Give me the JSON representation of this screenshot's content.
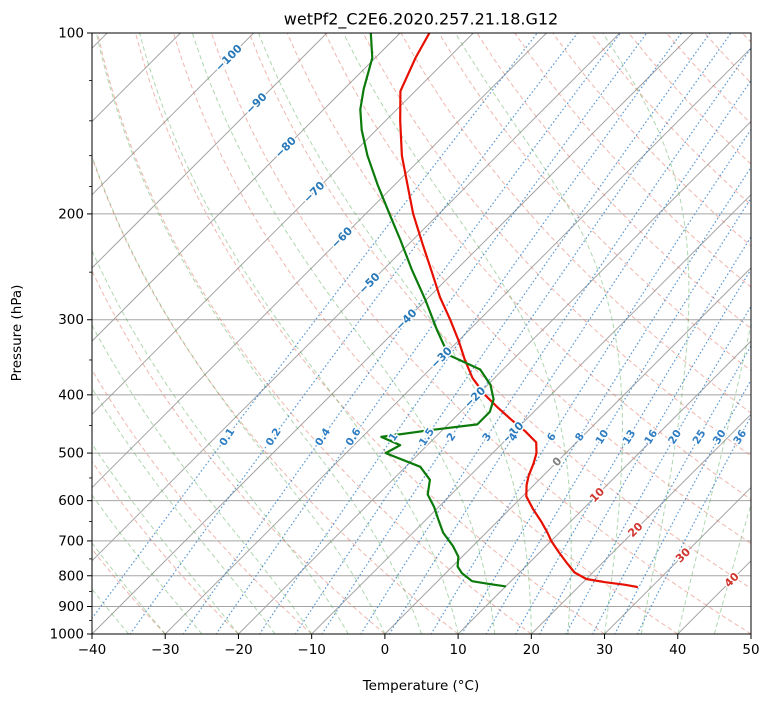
{
  "window": {
    "title": "wetPf2_C2E6.2020.257.21.18.G12"
  },
  "chart_data": {
    "type": "line",
    "subtype": "skew-t-log-p",
    "title": "wetPf2_C2E6.2020.257.21.18.G12",
    "xlabel": "Temperature (°C)",
    "ylabel": "Pressure (hPa)",
    "p_top": 100,
    "p_bottom": 1000,
    "skew_degrees": 45,
    "x_axis": {
      "min": -40,
      "max": 50,
      "ticks": [
        -40,
        -30,
        -20,
        -10,
        0,
        10,
        20,
        30,
        40,
        50
      ],
      "tick_labels": [
        "−40",
        "−30",
        "−20",
        "−10",
        "0",
        "10",
        "20",
        "30",
        "40",
        "50"
      ]
    },
    "y_axis": {
      "min": 100,
      "max": 1000,
      "scale": "log",
      "ticks": [
        100,
        200,
        300,
        400,
        500,
        600,
        700,
        800,
        900,
        1000
      ],
      "tick_labels": [
        "100",
        "200",
        "300",
        "400",
        "500",
        "600",
        "700",
        "800",
        "900",
        "1000"
      ]
    },
    "background_lines": {
      "isobars": {
        "start": 100,
        "end": 1000,
        "step": 100,
        "color": "#9b9b9b"
      },
      "isotherms": {
        "start": -120,
        "end": 50,
        "step": 10,
        "color": "#9b9b9b"
      },
      "dry_adiabats": {
        "start": -40,
        "end": 200,
        "step": 10,
        "color": "#e0705c"
      },
      "moist_adiabats": {
        "start": -40,
        "end": 60,
        "step": 5,
        "color": "#4da64d"
      },
      "mixing_ratios": {
        "values": [
          0.1,
          0.2,
          0.4,
          0.6,
          1,
          1.5,
          2,
          3,
          4,
          6,
          8,
          10,
          13,
          16,
          20,
          25,
          30,
          36
        ],
        "color": "#2f7ec4",
        "label_pressure": 470
      }
    },
    "isotherm_labels": [
      {
        "text": "−100",
        "t": -100,
        "p": 110,
        "color": "#2878b8"
      },
      {
        "text": "−90",
        "t": -90,
        "p": 131,
        "color": "#2878b8"
      },
      {
        "text": "−80",
        "t": -80,
        "p": 155,
        "color": "#2878b8"
      },
      {
        "text": "−70",
        "t": -70,
        "p": 184,
        "color": "#2878b8"
      },
      {
        "text": "−60",
        "t": -60,
        "p": 219,
        "color": "#2878b8"
      },
      {
        "text": "−50",
        "t": -50,
        "p": 261,
        "color": "#2878b8"
      },
      {
        "text": "−40",
        "t": -40,
        "p": 300,
        "color": "#2878b8"
      },
      {
        "text": "−30",
        "t": -30,
        "p": 347,
        "color": "#2878b8"
      },
      {
        "text": "−20",
        "t": -20,
        "p": 404,
        "color": "#2878b8"
      },
      {
        "text": "−10",
        "t": -10,
        "p": 462,
        "color": "#2878b8"
      },
      {
        "text": "0",
        "t": 0,
        "p": 517,
        "color": "#808080"
      },
      {
        "text": "10",
        "t": 10,
        "p": 587,
        "color": "#d0342c"
      },
      {
        "text": "20",
        "t": 20,
        "p": 671,
        "color": "#d0342c"
      },
      {
        "text": "30",
        "t": 30,
        "p": 740,
        "color": "#d0342c"
      },
      {
        "text": "40",
        "t": 40,
        "p": 813,
        "color": "#d0342c"
      }
    ],
    "series": [
      {
        "name": "temperature",
        "color": "#e60f00",
        "pressure": [
          100,
          110,
          125,
          140,
          160,
          180,
          200,
          225,
          250,
          275,
          300,
          325,
          350,
          375,
          400,
          420,
          440,
          460,
          480,
          500,
          520,
          545,
          565,
          590,
          620,
          650,
          680,
          700,
          730,
          760,
          790,
          810,
          820,
          828,
          835
        ],
        "values": [
          -76,
          -74.5,
          -72,
          -68,
          -63,
          -58,
          -53.5,
          -48,
          -43,
          -38.5,
          -34,
          -30,
          -26.5,
          -23,
          -19,
          -15.5,
          -12,
          -8.5,
          -5.5,
          -4,
          -3,
          -2,
          -1,
          0.5,
          3.2,
          6,
          8.5,
          10,
          12.5,
          15,
          17.5,
          20,
          23,
          26,
          28
        ]
      },
      {
        "name": "dewpoint",
        "color": "#0b7a0b",
        "pressure": [
          100,
          110,
          124,
          134,
          145,
          160,
          179,
          201,
          221,
          248,
          278,
          312,
          343,
          363,
          385,
          407,
          427,
          448,
          458,
          470,
          485,
          500,
          527,
          554,
          586,
          615,
          644,
          678,
          714,
          744,
          772,
          792,
          817,
          826,
          833
        ],
        "values": [
          -84,
          -80.4,
          -77.3,
          -75,
          -72,
          -67.7,
          -62.3,
          -56.5,
          -51.7,
          -46,
          -40.1,
          -34.4,
          -29.5,
          -23.1,
          -19.6,
          -17.2,
          -16,
          -16,
          -21.7,
          -27.4,
          -23.7,
          -24.6,
          -18,
          -14.9,
          -13.2,
          -10.6,
          -8.4,
          -5.9,
          -2.7,
          -0.5,
          0.7,
          2.2,
          4.7,
          7.5,
          9.9
        ]
      }
    ]
  }
}
